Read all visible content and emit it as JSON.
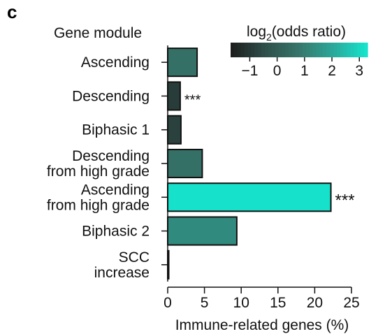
{
  "panel_label": "c",
  "chart_data": {
    "type": "bar",
    "orientation": "horizontal",
    "ytitle": "Gene module",
    "xlabel": "Immune-related genes (%)",
    "xlim": [
      0,
      25
    ],
    "xticks": [
      0,
      5,
      10,
      15,
      20,
      25
    ],
    "grid": false,
    "categories": [
      {
        "lines": [
          "Ascending"
        ]
      },
      {
        "lines": [
          "Descending"
        ]
      },
      {
        "lines": [
          "Biphasic 1"
        ]
      },
      {
        "lines": [
          "Descending",
          "from high grade"
        ]
      },
      {
        "lines": [
          "Ascending",
          "from high grade"
        ]
      },
      {
        "lines": [
          "Biphasic 2"
        ]
      },
      {
        "lines": [
          "SCC",
          "increase"
        ]
      }
    ],
    "values": [
      4.0,
      1.7,
      1.8,
      4.7,
      22.2,
      9.4,
      0.1
    ],
    "log2_odds_ratio": [
      0.6,
      -0.9,
      -0.8,
      0.6,
      3.2,
      1.3,
      -1.5
    ],
    "annotations": [
      "",
      "***",
      "",
      "",
      "***",
      "",
      ""
    ],
    "colorbar": {
      "title_prefix": "log",
      "title_sub": "2",
      "title_suffix": "(odds ratio)",
      "range": [
        -1.7,
        3.3
      ],
      "ticks": [
        "−1",
        "0",
        "1",
        "2",
        "3"
      ],
      "tick_values": [
        -1,
        0,
        1,
        2,
        3
      ],
      "colors": [
        "#1c1c1c",
        "#2f4f4a",
        "#36766b",
        "#2aa89a",
        "#14e6cf"
      ]
    },
    "legend_placement": "top-right"
  }
}
